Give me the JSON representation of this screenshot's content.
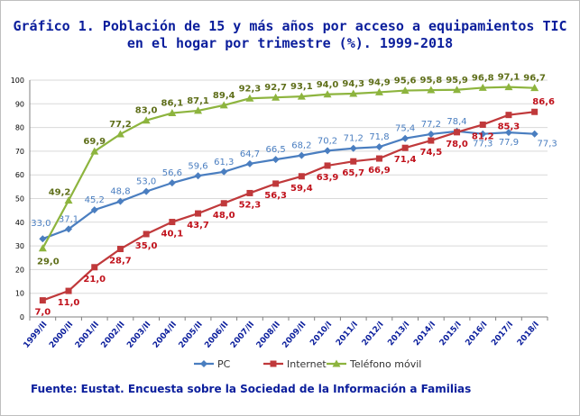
{
  "chart_data": {
    "type": "line",
    "title_line1": "Gráfico 1. Población de 15 y más años por acceso a equipamientos TIC",
    "title_line2": "en el hogar por trimestre (%). 1999-2018",
    "categories": [
      "1999/II",
      "2000/II",
      "2001/II",
      "2002/II",
      "2003/II",
      "2004/II",
      "2005/II",
      "2006/II",
      "2007/II",
      "2008/II",
      "2009/II",
      "2010/I",
      "2011/I",
      "2012/I",
      "2013/I",
      "2014/I",
      "2015/I",
      "2016/I",
      "2017/I",
      "2018/I"
    ],
    "ylim": [
      0,
      100
    ],
    "yticks": [
      0,
      10,
      20,
      30,
      40,
      50,
      60,
      70,
      80,
      90,
      100
    ],
    "series": [
      {
        "name": "PC",
        "color": "#4a7ec0",
        "marker": "diamond",
        "values": [
          33.0,
          37.1,
          45.2,
          48.8,
          53.0,
          56.6,
          59.6,
          61.3,
          64.7,
          66.5,
          68.2,
          70.2,
          71.2,
          71.8,
          75.4,
          77.2,
          78.4,
          77.3,
          77.9,
          77.3
        ],
        "labels": [
          "33,0",
          "37,1",
          "45,2",
          "48,8",
          "53,0",
          "56,6",
          "59,6",
          "61,3",
          "64,7",
          "66,5",
          "68,2",
          "70,2",
          "71,2",
          "71,8",
          "75,4",
          "77,2",
          "78,4",
          "77,3",
          "77,9",
          "77,3"
        ]
      },
      {
        "name": "Internet",
        "color": "#c0393b",
        "marker": "square",
        "values": [
          7.0,
          11.0,
          21.0,
          28.7,
          35.0,
          40.1,
          43.7,
          48.0,
          52.3,
          56.3,
          59.4,
          63.9,
          65.7,
          66.9,
          71.4,
          74.5,
          78.0,
          81.2,
          85.3,
          86.6
        ],
        "labels": [
          "7,0",
          "11,0",
          "21,0",
          "28,7",
          "35,0",
          "40,1",
          "43,7",
          "48,0",
          "52,3",
          "56,3",
          "59,4",
          "63,9",
          "65,7",
          "66,9",
          "71,4",
          "74,5",
          "78,0",
          "81,2",
          "85,3",
          "86,6"
        ]
      },
      {
        "name": "Teléfono móvil",
        "color": "#8db43e",
        "marker": "triangle",
        "values": [
          29.0,
          49.2,
          69.9,
          77.2,
          83.0,
          86.1,
          87.1,
          89.4,
          92.3,
          92.7,
          93.1,
          94.0,
          94.3,
          94.9,
          95.6,
          95.8,
          95.9,
          96.8,
          97.1,
          96.7
        ],
        "labels": [
          "29,0",
          "49,2",
          "69,9",
          "77,2",
          "83,0",
          "86,1",
          "87,1",
          "89,4",
          "92,3",
          "92,7",
          "93,1",
          "94,0",
          "94,3",
          "94,9",
          "95,6",
          "95,8",
          "95,9",
          "96,8",
          "97,1",
          "96,7"
        ]
      }
    ],
    "legend": "bottom"
  },
  "source": "Fuente: Eustat. Encuesta sobre la Sociedad de la Información a Familias"
}
